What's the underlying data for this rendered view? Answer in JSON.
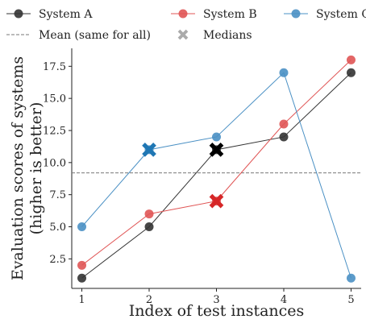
{
  "chart_data": {
    "type": "line",
    "title": "",
    "xlabel": "Index of test instances",
    "ylabel_lines": [
      "Evaluation scores of systems",
      "(higher is better)"
    ],
    "x": [
      1,
      2,
      3,
      4,
      5
    ],
    "xlim": [
      0.85,
      5.15
    ],
    "ylim": [
      0.2,
      18.9
    ],
    "x_ticks": [
      "1",
      "2",
      "3",
      "4",
      "5"
    ],
    "y_tick_values": [
      2.5,
      5.0,
      7.5,
      10.0,
      12.5,
      15.0,
      17.5
    ],
    "y_ticks": [
      "2.5",
      "5.0",
      "7.5",
      "10.0",
      "12.5",
      "15.0",
      "17.5"
    ],
    "grid": false,
    "legend_position": "top",
    "series": [
      {
        "name": "System A",
        "color": "#333333",
        "values": [
          1,
          5,
          11,
          12,
          17
        ],
        "median": {
          "x": 3,
          "y": 11
        },
        "median_color": "#000000"
      },
      {
        "name": "System B",
        "color": "#e05555",
        "values": [
          2,
          6,
          7,
          13,
          18
        ],
        "median": {
          "x": 3,
          "y": 7
        },
        "median_color": "#d62728"
      },
      {
        "name": "System C",
        "color": "#4a90c4",
        "values": [
          5,
          11,
          12,
          17,
          1
        ],
        "median": {
          "x": 2,
          "y": 11
        },
        "median_color": "#1f77b4"
      }
    ],
    "mean": {
      "label": "Mean (same for all)",
      "value": 9.2,
      "color": "#777777"
    },
    "medians_label": "Medians",
    "medians_legend_color": "#aaaaaa"
  }
}
